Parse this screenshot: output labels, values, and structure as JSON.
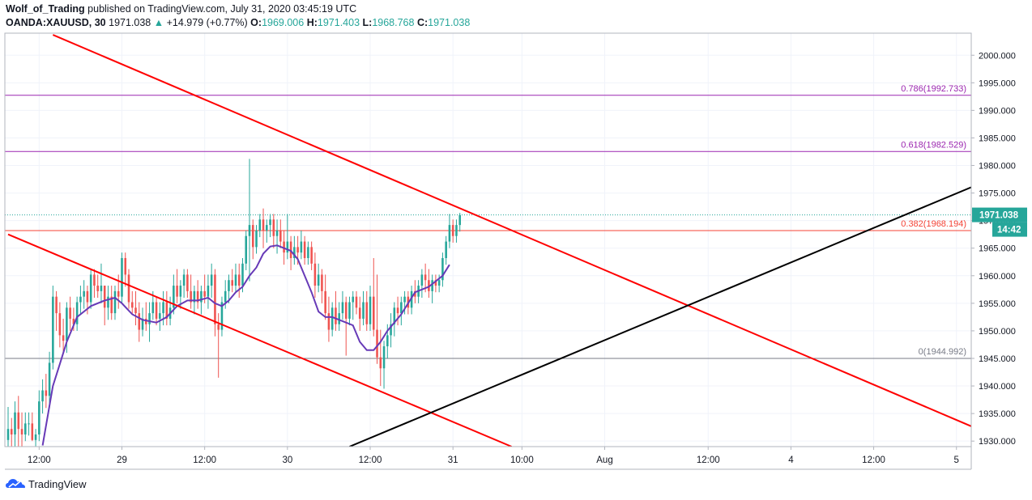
{
  "header": {
    "author": "Wolf_of_Trading",
    "published": "published on TradingView.com, July 31, 2020 03:45:19 UTC",
    "symbol": "OANDA:XAUUSD, 30",
    "last": "1971.038",
    "change": "+14.979 (+0.77%)",
    "o_label": "O:",
    "o_value": "1969.006",
    "h_label": "H:",
    "h_value": "1971.403",
    "l_label": "L:",
    "l_value": "1968.768",
    "c_label": "C:",
    "c_value": "1971.038"
  },
  "footer": {
    "brand": "TradingView",
    "icon": "tradingview-logo-icon"
  },
  "colors": {
    "up": "#26a69a",
    "down": "#ef5350",
    "ma": "#673ab7",
    "trend": "#ff0000",
    "fib_upper": "#9c27b0",
    "fib_382": "#f44336",
    "fib_zero": "#787b86",
    "black_line": "#000000",
    "price_tag": "#26a69a"
  },
  "chart_data": {
    "type": "candlestick",
    "ylim": [
      1929,
      2004
    ],
    "y_ticks": [
      "1930.000",
      "1935.000",
      "1940.000",
      "1945.000",
      "1950.000",
      "1955.000",
      "1960.000",
      "1965.000",
      "1970.000",
      "1975.000",
      "1980.000",
      "1985.000",
      "1990.000",
      "1995.000",
      "2000.000"
    ],
    "x_ticks": [
      {
        "label": "12:00",
        "bar": 9
      },
      {
        "label": "29",
        "bar": 33
      },
      {
        "label": "12:00",
        "bar": 57
      },
      {
        "label": "30",
        "bar": 81
      },
      {
        "label": "12:00",
        "bar": 105
      },
      {
        "label": "31",
        "bar": 129
      },
      {
        "label": "10:00",
        "bar": 149
      },
      {
        "label": "Aug",
        "bar": 173
      },
      {
        "label": "12:00",
        "bar": 203
      },
      {
        "label": "4",
        "bar": 227
      },
      {
        "label": "12:00",
        "bar": 251
      },
      {
        "label": "5",
        "bar": 275
      }
    ],
    "bar_range": [
      0,
      276
    ],
    "current_price": "1971.038",
    "countdown": "14:42",
    "fib_levels": [
      {
        "label": "0.786(1992.733)",
        "value": 1992.733,
        "color": "#9c27b0"
      },
      {
        "label": "0.618(1982.529)",
        "value": 1982.529,
        "color": "#9c27b0"
      },
      {
        "label": "0.382(1968.194)",
        "value": 1968.194,
        "color": "#f44336"
      },
      {
        "label": "0(1944.992)",
        "value": 1944.992,
        "color": "#787b86"
      }
    ],
    "trend_lines": [
      {
        "name": "upper-channel",
        "color": "#ff0000",
        "p1": {
          "bar": 13,
          "price": 2003.7
        },
        "p2": {
          "bar": 280,
          "price": 1932.5
        }
      },
      {
        "name": "lower-channel",
        "color": "#ff0000",
        "p1": {
          "bar": 0,
          "price": 1967.5
        },
        "p2": {
          "bar": 146,
          "price": 1929.0
        }
      },
      {
        "name": "rising-support",
        "color": "#000000",
        "p1": {
          "bar": 99,
          "price": 1929.0
        },
        "p2": {
          "bar": 281,
          "price": 1976.5
        }
      }
    ],
    "candles": [
      [
        1930.2,
        1936.2,
        1929.0,
        1932.2
      ],
      [
        1932.2,
        1934.2,
        1929.0,
        1931.2
      ],
      [
        1931.2,
        1937.2,
        1929.0,
        1935.2
      ],
      [
        1935.2,
        1938.2,
        1929.0,
        1932.2
      ],
      [
        1932.2,
        1935.2,
        1929.0,
        1931.2
      ],
      [
        1931.2,
        1935.2,
        1930.0,
        1933.2
      ],
      [
        1933.2,
        1935.2,
        1931.0,
        1933.2
      ],
      [
        1933.2,
        1935.2,
        1930.0,
        1930.2
      ],
      [
        1930.2,
        1932.2,
        1929.0,
        1931.2
      ],
      [
        1931.2,
        1939.2,
        1930.0,
        1937.2
      ],
      [
        1937.2,
        1941.2,
        1935.0,
        1939.2
      ],
      [
        1939.2,
        1942.2,
        1936.0,
        1938.2
      ],
      [
        1938.2,
        1946.2,
        1936.0,
        1944.2
      ],
      [
        1944.2,
        1958.2,
        1943.0,
        1956.2
      ],
      [
        1956.2,
        1957.2,
        1950.0,
        1953.2
      ],
      [
        1953.2,
        1955.2,
        1947.0,
        1949.2
      ],
      [
        1949.2,
        1952.2,
        1946.0,
        1948.2
      ],
      [
        1948.2,
        1955.2,
        1946.0,
        1954.2
      ],
      [
        1954.2,
        1956.2,
        1950.0,
        1952.2
      ],
      [
        1952.2,
        1954.2,
        1950.0,
        1951.2
      ],
      [
        1951.2,
        1956.2,
        1950.0,
        1955.2
      ],
      [
        1955.2,
        1958.2,
        1953.0,
        1956.2
      ],
      [
        1956.2,
        1959.2,
        1954.0,
        1957.2
      ],
      [
        1957.2,
        1958.2,
        1953.0,
        1955.2
      ],
      [
        1955.2,
        1961.2,
        1954.0,
        1960.2
      ],
      [
        1960.2,
        1961.2,
        1956.0,
        1958.2
      ],
      [
        1958.2,
        1960.2,
        1956.0,
        1957.2
      ],
      [
        1957.2,
        1962.2,
        1955.0,
        1958.2
      ],
      [
        1958.2,
        1958.2,
        1951.0,
        1954.2
      ],
      [
        1954.2,
        1958.2,
        1952.0,
        1956.2
      ],
      [
        1956.2,
        1958.2,
        1952.0,
        1953.2
      ],
      [
        1953.2,
        1958.2,
        1952.0,
        1957.2
      ],
      [
        1957.2,
        1960.2,
        1954.0,
        1956.2
      ],
      [
        1956.2,
        1964.2,
        1955.0,
        1963.2
      ],
      [
        1963.2,
        1964.2,
        1958.0,
        1960.2
      ],
      [
        1960.2,
        1961.2,
        1954.0,
        1955.2
      ],
      [
        1955.2,
        1957.2,
        1953.0,
        1954.2
      ],
      [
        1954.2,
        1957.2,
        1951.0,
        1953.2
      ],
      [
        1953.2,
        1955.2,
        1948.0,
        1950.2
      ],
      [
        1950.2,
        1954.2,
        1949.0,
        1952.2
      ],
      [
        1952.2,
        1955.2,
        1950.0,
        1951.2
      ],
      [
        1951.2,
        1955.2,
        1948.0,
        1953.2
      ],
      [
        1953.2,
        1957.2,
        1952.0,
        1955.2
      ],
      [
        1955.2,
        1956.2,
        1951.0,
        1952.2
      ],
      [
        1952.2,
        1955.2,
        1950.0,
        1953.2
      ],
      [
        1953.2,
        1957.2,
        1951.0,
        1955.2
      ],
      [
        1955.2,
        1957.2,
        1951.0,
        1952.2
      ],
      [
        1952.2,
        1956.2,
        1951.0,
        1954.2
      ],
      [
        1954.2,
        1960.2,
        1953.0,
        1958.2
      ],
      [
        1958.2,
        1961.2,
        1955.0,
        1956.2
      ],
      [
        1956.2,
        1959.2,
        1954.0,
        1958.2
      ],
      [
        1958.2,
        1961.2,
        1956.0,
        1960.2
      ],
      [
        1960.2,
        1961.2,
        1956.0,
        1957.2
      ],
      [
        1957.2,
        1960.2,
        1954.0,
        1955.2
      ],
      [
        1955.2,
        1958.2,
        1953.0,
        1957.2
      ],
      [
        1957.2,
        1959.2,
        1954.0,
        1955.2
      ],
      [
        1955.2,
        1958.2,
        1953.0,
        1957.2
      ],
      [
        1957.2,
        1960.2,
        1955.0,
        1956.2
      ],
      [
        1956.2,
        1960.2,
        1954.0,
        1958.2
      ],
      [
        1958.2,
        1962.2,
        1956.0,
        1960.2
      ],
      [
        1960.2,
        1961.2,
        1949.0,
        1951.2
      ],
      [
        1951.2,
        1953.2,
        1941.5,
        1950.2
      ],
      [
        1950.2,
        1956.2,
        1949.0,
        1955.2
      ],
      [
        1955.2,
        1959.2,
        1954.0,
        1957.2
      ],
      [
        1957.2,
        1960.2,
        1955.0,
        1959.2
      ],
      [
        1959.2,
        1961.2,
        1957.0,
        1958.2
      ],
      [
        1958.2,
        1962.2,
        1957.0,
        1960.2
      ],
      [
        1960.2,
        1962.2,
        1956.0,
        1958.2
      ],
      [
        1958.2,
        1963.2,
        1957.0,
        1962.2
      ],
      [
        1962.2,
        1968.2,
        1961.0,
        1967.2
      ],
      [
        1967.2,
        1981.2,
        1959.0,
        1969.2
      ],
      [
        1969.2,
        1970.2,
        1963.0,
        1965.2
      ],
      [
        1965.2,
        1969.2,
        1964.0,
        1968.2
      ],
      [
        1968.2,
        1971.2,
        1967.0,
        1970.2
      ],
      [
        1970.2,
        1972.2,
        1965.0,
        1968.2
      ],
      [
        1968.2,
        1970.2,
        1966.0,
        1969.2
      ],
      [
        1969.2,
        1971.2,
        1967.0,
        1970.2
      ],
      [
        1970.2,
        1971.2,
        1965.0,
        1967.2
      ],
      [
        1967.2,
        1970.2,
        1964.0,
        1968.2
      ],
      [
        1968.2,
        1970.2,
        1965.0,
        1966.2
      ],
      [
        1966.2,
        1968.2,
        1962.0,
        1964.2
      ],
      [
        1964.2,
        1971.2,
        1963.0,
        1966.2
      ],
      [
        1966.2,
        1967.2,
        1961.0,
        1963.2
      ],
      [
        1963.2,
        1967.2,
        1962.0,
        1965.2
      ],
      [
        1965.2,
        1967.2,
        1962.0,
        1964.2
      ],
      [
        1964.2,
        1968.2,
        1963.0,
        1966.2
      ],
      [
        1966.2,
        1967.2,
        1962.0,
        1963.2
      ],
      [
        1963.2,
        1966.2,
        1962.0,
        1965.2
      ],
      [
        1965.2,
        1966.2,
        1961.0,
        1962.2
      ],
      [
        1962.2,
        1964.2,
        1956.0,
        1958.2
      ],
      [
        1958.2,
        1962.2,
        1957.0,
        1960.2
      ],
      [
        1960.2,
        1961.2,
        1955.0,
        1957.2
      ],
      [
        1957.2,
        1960.2,
        1952.0,
        1953.2
      ],
      [
        1953.2,
        1956.2,
        1948.0,
        1950.2
      ],
      [
        1950.2,
        1955.2,
        1949.0,
        1954.2
      ],
      [
        1954.2,
        1957.2,
        1950.0,
        1951.2
      ],
      [
        1951.2,
        1955.2,
        1950.0,
        1953.2
      ],
      [
        1953.2,
        1957.2,
        1952.0,
        1955.2
      ],
      [
        1955.2,
        1956.2,
        1945.5,
        1952.2
      ],
      [
        1952.2,
        1956.2,
        1951.0,
        1955.2
      ],
      [
        1955.2,
        1957.2,
        1952.0,
        1956.2
      ],
      [
        1956.2,
        1957.2,
        1953.0,
        1954.2
      ],
      [
        1954.2,
        1956.2,
        1950.0,
        1952.2
      ],
      [
        1952.2,
        1957.2,
        1951.0,
        1955.2
      ],
      [
        1955.2,
        1957.2,
        1950.0,
        1951.2
      ],
      [
        1951.2,
        1958.2,
        1950.0,
        1956.2
      ],
      [
        1956.2,
        1963.2,
        1949.0,
        1950.2
      ],
      [
        1950.2,
        1960.2,
        1944.0,
        1945.2
      ],
      [
        1945.2,
        1950.2,
        1940.0,
        1943.2
      ],
      [
        1943.2,
        1948.2,
        1939.5,
        1947.2
      ],
      [
        1947.2,
        1951.2,
        1945.0,
        1949.2
      ],
      [
        1949.2,
        1953.2,
        1947.0,
        1951.2
      ],
      [
        1951.2,
        1955.2,
        1949.0,
        1954.2
      ],
      [
        1954.2,
        1956.2,
        1951.0,
        1953.2
      ],
      [
        1953.2,
        1956.2,
        1951.0,
        1955.2
      ],
      [
        1955.2,
        1957.2,
        1953.0,
        1956.2
      ],
      [
        1956.2,
        1957.2,
        1953.0,
        1954.2
      ],
      [
        1954.2,
        1958.2,
        1953.0,
        1957.2
      ],
      [
        1957.2,
        1959.2,
        1955.0,
        1956.2
      ],
      [
        1956.2,
        1959.2,
        1955.0,
        1958.2
      ],
      [
        1958.2,
        1961.2,
        1956.0,
        1960.2
      ],
      [
        1960.2,
        1962.2,
        1957.0,
        1959.2
      ],
      [
        1959.2,
        1961.2,
        1956.0,
        1957.2
      ],
      [
        1957.2,
        1960.2,
        1955.0,
        1959.2
      ],
      [
        1959.2,
        1960.2,
        1957.0,
        1958.2
      ],
      [
        1958.2,
        1960.2,
        1957.0,
        1959.2
      ],
      [
        1959.2,
        1964.2,
        1958.0,
        1963.2
      ],
      [
        1963.2,
        1967.2,
        1962.0,
        1966.2
      ],
      [
        1966.2,
        1971.2,
        1965.0,
        1969.2
      ],
      [
        1969.2,
        1970.2,
        1966.0,
        1967.2
      ],
      [
        1967.2,
        1970.2,
        1966.0,
        1969.2
      ],
      [
        1969.2,
        1971.4,
        1968.0,
        1971.0
      ]
    ],
    "ma": [
      [
        10,
        1929.2
      ],
      [
        13,
        1940.0
      ],
      [
        15,
        1944.0
      ],
      [
        17,
        1948.0
      ],
      [
        20,
        1952.5
      ],
      [
        24,
        1954.5
      ],
      [
        28,
        1955.5
      ],
      [
        31,
        1956.0
      ],
      [
        33,
        1955.0
      ],
      [
        36,
        1953.0
      ],
      [
        39,
        1952.0
      ],
      [
        43,
        1951.5
      ],
      [
        46,
        1952.5
      ],
      [
        49,
        1954.5
      ],
      [
        52,
        1955.5
      ],
      [
        55,
        1955.5
      ],
      [
        58,
        1956.0
      ],
      [
        60,
        1955.0
      ],
      [
        62,
        1954.5
      ],
      [
        64,
        1955.5
      ],
      [
        66,
        1957.0
      ],
      [
        68,
        1958.0
      ],
      [
        70,
        1960.0
      ],
      [
        72,
        1961.5
      ],
      [
        74,
        1964.0
      ],
      [
        76,
        1965.3
      ],
      [
        78,
        1965.5
      ],
      [
        80,
        1965.0
      ],
      [
        82,
        1964.5
      ],
      [
        84,
        1963.0
      ],
      [
        86,
        1960.0
      ],
      [
        88,
        1957.0
      ],
      [
        90,
        1953.5
      ],
      [
        92,
        1952.5
      ],
      [
        94,
        1952.5
      ],
      [
        96,
        1952.0
      ],
      [
        98,
        1951.5
      ],
      [
        100,
        1951.0
      ],
      [
        102,
        1948.0
      ],
      [
        104,
        1946.5
      ],
      [
        106,
        1946.5
      ],
      [
        108,
        1948.0
      ],
      [
        110,
        1950.0
      ],
      [
        112,
        1951.5
      ],
      [
        114,
        1953.0
      ],
      [
        116,
        1955.0
      ],
      [
        118,
        1957.0
      ],
      [
        120,
        1957.5
      ],
      [
        122,
        1958.0
      ],
      [
        124,
        1959.0
      ],
      [
        126,
        1960.0
      ],
      [
        128,
        1962.0
      ]
    ]
  }
}
